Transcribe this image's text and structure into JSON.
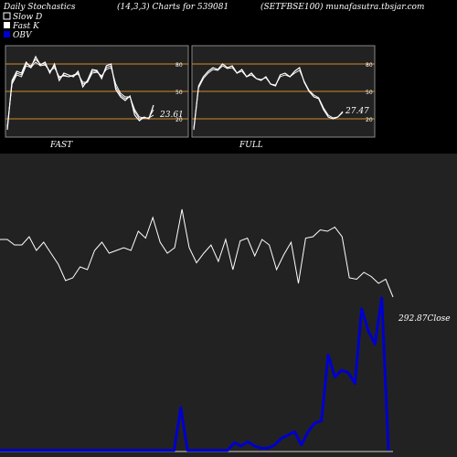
{
  "header": {
    "left_title": "Daily Stochastics",
    "params": "(14,3,3) Charts for 539081",
    "symbol": "(SETFBSE100) munafasutra.tbsjar.com"
  },
  "legend": [
    {
      "label": "Slow  D",
      "color": "#ffffff"
    },
    {
      "label": "Fast K",
      "color": "#ffffff"
    },
    {
      "label": "OBV",
      "color": "#0000cc"
    }
  ],
  "colors": {
    "background": "#000000",
    "panel": "#222222",
    "level_line": "#d08a2a",
    "stoch_line": "#ffffff",
    "obv_line": "#0000cc",
    "price_line": "#ffffff"
  },
  "chart_data": [
    {
      "type": "line",
      "panel": "FAST",
      "title": "FAST",
      "ylim": [
        0,
        100
      ],
      "levels": [
        80,
        50,
        20
      ],
      "level_labels": [
        "80",
        "50",
        "20"
      ],
      "last_value_label": "23.61",
      "series": [
        {
          "values": [
            8,
            62,
            72,
            70,
            82,
            76,
            88,
            79,
            82,
            70,
            80,
            62,
            70,
            68,
            66,
            72,
            55,
            62,
            74,
            73,
            64,
            78,
            80,
            52,
            44,
            40,
            45,
            24,
            18,
            22,
            20,
            35
          ]
        },
        {
          "values": [
            10,
            60,
            70,
            68,
            80,
            78,
            85,
            80,
            80,
            72,
            78,
            65,
            68,
            66,
            68,
            70,
            58,
            60,
            72,
            72,
            66,
            76,
            78,
            55,
            46,
            42,
            44,
            28,
            20,
            21,
            21,
            30
          ]
        },
        {
          "values": [
            12,
            58,
            68,
            66,
            78,
            76,
            82,
            78,
            79,
            72,
            76,
            66,
            67,
            66,
            67,
            69,
            60,
            60,
            70,
            71,
            67,
            74,
            76,
            58,
            48,
            44,
            44,
            30,
            22,
            21,
            21,
            24
          ]
        }
      ]
    },
    {
      "type": "line",
      "panel": "FULL",
      "title": "FULL",
      "ylim": [
        0,
        100
      ],
      "levels": [
        80,
        50,
        20
      ],
      "level_labels": [
        "80",
        "50",
        "20"
      ],
      "last_value_label": "27.47",
      "series": [
        {
          "values": [
            8,
            56,
            66,
            72,
            76,
            74,
            80,
            76,
            78,
            70,
            74,
            66,
            70,
            64,
            62,
            66,
            58,
            56,
            68,
            70,
            66,
            72,
            76,
            60,
            50,
            44,
            42,
            30,
            22,
            20,
            22,
            28
          ]
        },
        {
          "values": [
            10,
            54,
            64,
            70,
            74,
            73,
            78,
            75,
            76,
            70,
            72,
            66,
            68,
            64,
            63,
            65,
            58,
            57,
            66,
            68,
            66,
            70,
            73,
            61,
            51,
            46,
            43,
            32,
            24,
            21,
            22,
            27
          ]
        }
      ]
    },
    {
      "type": "line",
      "panel": "price",
      "title": "",
      "ylim": [
        0,
        100
      ],
      "last_value_label": "292.87",
      "label_suffix": "Close",
      "series": [
        {
          "name": "Close",
          "values": [
            62,
            62,
            58,
            58,
            64,
            54,
            60,
            52,
            44,
            32,
            34,
            42,
            40,
            54,
            60,
            52,
            54,
            56,
            54,
            68,
            63,
            78,
            60,
            52,
            56,
            84,
            56,
            45,
            52,
            58,
            46,
            62,
            40,
            61,
            63,
            50,
            62,
            58,
            40,
            51,
            60,
            30,
            63,
            64,
            69,
            68,
            71,
            64,
            34,
            33,
            38,
            35,
            30,
            33,
            20
          ]
        }
      ]
    },
    {
      "type": "line",
      "panel": "OBV",
      "title": "",
      "ylim": [
        0,
        100
      ],
      "series": [
        {
          "name": "OBV",
          "values": [
            1,
            1,
            1,
            1,
            1,
            1,
            1,
            1,
            1,
            1,
            1,
            1,
            1,
            1,
            1,
            1,
            1,
            1,
            1,
            1,
            1,
            1,
            1,
            1,
            1,
            1,
            1,
            40,
            1,
            1,
            1,
            1,
            1,
            1,
            1,
            8,
            5,
            9,
            5,
            3,
            3,
            6,
            12,
            15,
            18,
            6,
            18,
            26,
            28,
            88,
            68,
            74,
            72,
            62,
            130,
            110,
            98,
            140,
            1
          ]
        }
      ]
    }
  ]
}
